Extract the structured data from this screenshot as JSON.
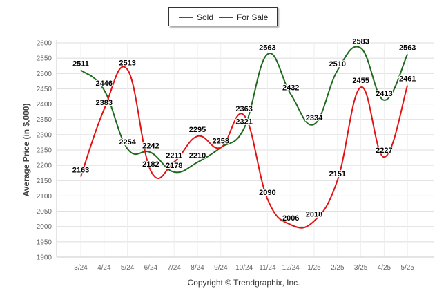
{
  "legend": {
    "sold_label": "Sold",
    "for_sale_label": "For Sale"
  },
  "footer": {
    "copyright": "Copyright © Trendgraphix, Inc."
  },
  "colors": {
    "sold": "#e31212",
    "for_sale": "#1e6b1e",
    "grid": "#dcdcdc",
    "axis_text": "#666666"
  },
  "chart_data": {
    "type": "line",
    "title": "",
    "xlabel": "",
    "ylabel": "Average Price (in $,000)",
    "ylim": [
      1900,
      2600
    ],
    "ytick_step": 50,
    "grid": true,
    "legend_position": "top-center",
    "categories": [
      "3/24",
      "4/24",
      "5/24",
      "6/24",
      "7/24",
      "8/24",
      "9/24",
      "10/24",
      "11/24",
      "12/24",
      "1/25",
      "2/25",
      "3/25",
      "4/25",
      "5/25"
    ],
    "series": [
      {
        "name": "Sold",
        "values": [
          2163,
          2383,
          2513,
          2182,
          2211,
          2295,
          2258,
          2363,
          2090,
          2006,
          2018,
          2151,
          2455,
          2227,
          2461
        ]
      },
      {
        "name": "For Sale",
        "values": [
          2511,
          2446,
          2254,
          2242,
          2178,
          2210,
          2258,
          2321,
          2563,
          2432,
          2334,
          2510,
          2583,
          2413,
          2563
        ]
      }
    ]
  }
}
